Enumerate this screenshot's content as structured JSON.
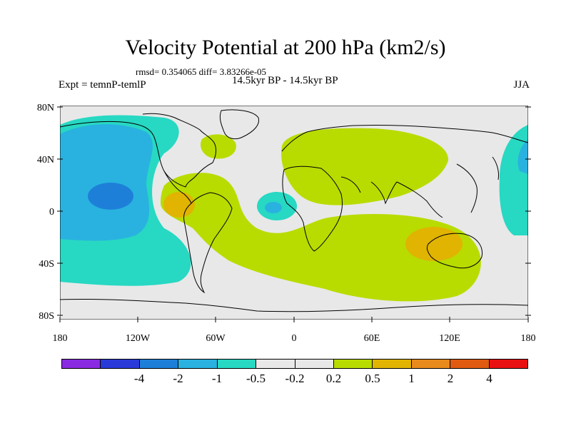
{
  "title": "Velocity Potential at 200 hPa (km2/s)",
  "stats_line": "rmsd= 0.354065 diff= 3.83266e-05",
  "subtitle": "14.5kyr BP - 14.5kyr BP",
  "experiment": "Expt = temnP-temlP",
  "season": "JJA",
  "map": {
    "projection": "cylindrical-equidistant",
    "lon_range": [
      -180,
      180
    ],
    "lat_range": [
      -90,
      90
    ],
    "lon_ticks": [
      "180",
      "120W",
      "60W",
      "0",
      "60E",
      "120E",
      "180"
    ],
    "lat_ticks": [
      "80N",
      "40N",
      "0",
      "40S",
      "80S"
    ]
  },
  "colorbar": {
    "colors": [
      "#8a2be2",
      "#2a3ad8",
      "#1e7fd9",
      "#29b2e0",
      "#27d8c3",
      "#e8e8e8",
      "#e8e8e8",
      "#b8dc00",
      "#e0b400",
      "#e88a1c",
      "#e05a10",
      "#e81010"
    ],
    "labels": [
      "-4",
      "-2",
      "-1",
      "-0.5",
      "-0.2",
      "0.2",
      "0.5",
      "1",
      "2",
      "4"
    ]
  }
}
